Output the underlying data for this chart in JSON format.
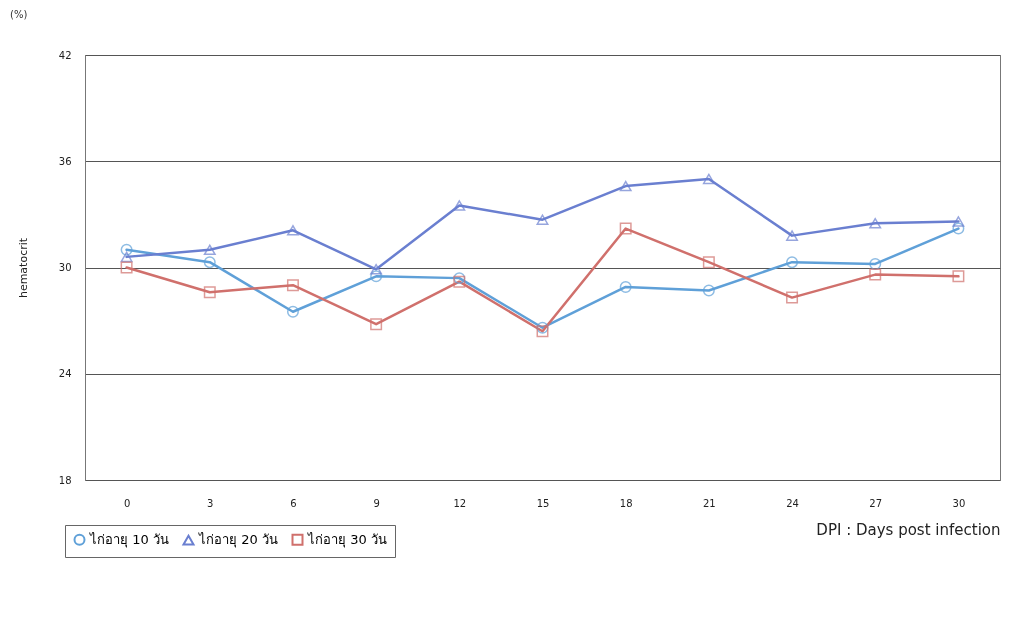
{
  "chart_data": {
    "type": "line",
    "xlabel": "DPI : Days post infection",
    "ylabel": "hematocrit",
    "annotations": [
      "(%)"
    ],
    "categories": [
      "0",
      "3",
      "6",
      "9",
      "12",
      "15",
      "18",
      "21",
      "24",
      "27",
      "30"
    ],
    "ylim": [
      18,
      42
    ],
    "yticks": [
      18,
      24,
      30,
      36,
      42
    ],
    "grid": "y",
    "legend": "bottom left",
    "series": [
      {
        "name": "ไก่อายุ 10 วัน",
        "color": "#5fa0d8",
        "marker": "circle",
        "values": [
          31.0,
          30.3,
          27.5,
          29.5,
          29.4,
          26.6,
          28.9,
          28.7,
          30.3,
          30.2,
          32.2
        ]
      },
      {
        "name": "ไก่อายุ 20 วัน",
        "color": "#6a7fd0",
        "marker": "triangle",
        "values": [
          30.6,
          31.0,
          32.1,
          29.9,
          33.5,
          32.7,
          34.6,
          35.0,
          31.8,
          32.5,
          32.6
        ]
      },
      {
        "name": "ไก่อายุ 30 วัน",
        "color": "#d0706c",
        "marker": "square",
        "values": [
          30.0,
          28.6,
          29.0,
          26.8,
          29.2,
          26.4,
          32.2,
          30.3,
          28.3,
          29.6,
          29.5
        ]
      }
    ]
  }
}
